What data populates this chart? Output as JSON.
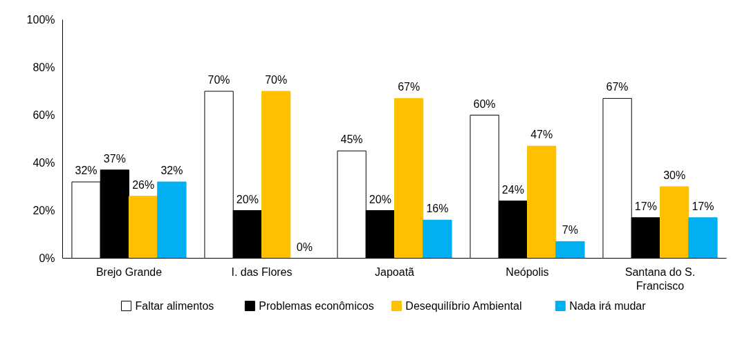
{
  "chart_data": {
    "type": "bar",
    "categories": [
      "Brejo Grande",
      "I. das Flores",
      "Japoatã",
      "Neópolis",
      "Santana do S. Francisco"
    ],
    "series": [
      {
        "name": "Faltar alimentos",
        "color": "#ffffff",
        "values": [
          32,
          70,
          45,
          60,
          67
        ],
        "value_labels": [
          "32%",
          "70%",
          "45%",
          "60%",
          "67%"
        ]
      },
      {
        "name": "Problemas econômicos",
        "color": "#000000",
        "values": [
          37,
          20,
          20,
          24,
          17
        ],
        "value_labels": [
          "37%",
          "20%",
          "20%",
          "24%",
          "17%"
        ]
      },
      {
        "name": "Desequilíbrio Ambiental",
        "color": "#ffc000",
        "values": [
          26,
          70,
          67,
          47,
          30
        ],
        "value_labels": [
          "26%",
          "70%",
          "67%",
          "47%",
          "30%"
        ]
      },
      {
        "name": "Nada irá mudar",
        "color": "#00b0f0",
        "values": [
          32,
          0,
          16,
          7,
          17
        ],
        "value_labels": [
          "32%",
          "0%",
          "16%",
          "7%",
          "17%"
        ]
      }
    ],
    "ylim": [
      0,
      100
    ],
    "yticks": [
      {
        "value": 0,
        "label": "0%"
      },
      {
        "value": 20,
        "label": "20%"
      },
      {
        "value": 40,
        "label": "40%"
      },
      {
        "value": 60,
        "label": "60%"
      },
      {
        "value": 80,
        "label": "80%"
      },
      {
        "value": 100,
        "label": "100%"
      }
    ],
    "grid": false,
    "legend": "bottom"
  }
}
